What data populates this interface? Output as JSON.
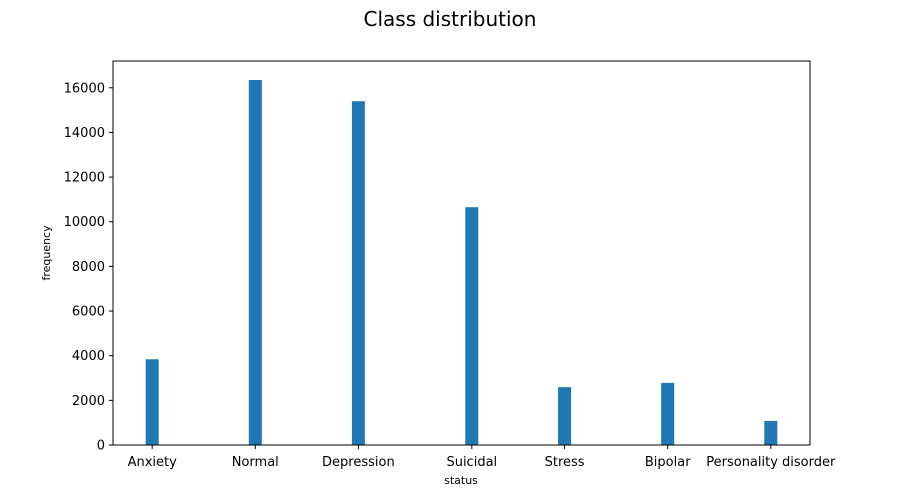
{
  "chart_data": {
    "type": "bar",
    "title": "Class distribution",
    "xlabel": "status",
    "ylabel": "frequency",
    "categories": [
      "Anxiety",
      "Normal",
      "Depression",
      "Suicidal",
      "Stress",
      "Bipolar",
      "Personality disorder"
    ],
    "x_positions": [
      0,
      1,
      2,
      3.1,
      4,
      5,
      6
    ],
    "values": [
      3840,
      16350,
      15400,
      10650,
      2590,
      2780,
      1080
    ],
    "ylim": [
      0,
      17200
    ],
    "xlim": [
      -0.38,
      6.38
    ],
    "yticks": [
      0,
      2000,
      4000,
      6000,
      8000,
      10000,
      12000,
      14000,
      16000
    ],
    "bar_color": "#1f77b4",
    "grid": false,
    "legend": "none"
  }
}
